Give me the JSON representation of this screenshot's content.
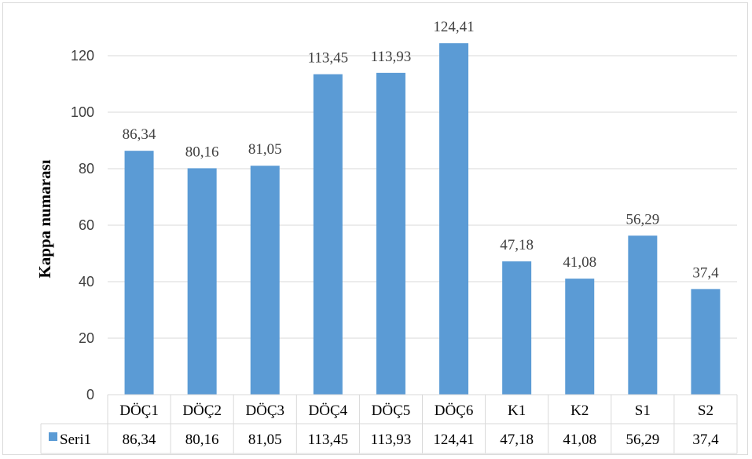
{
  "chart_data": {
    "type": "bar",
    "title": "",
    "xlabel": "",
    "ylabel": "Kappa numarası",
    "ylim": [
      0,
      140
    ],
    "yticks": [
      0,
      20,
      40,
      60,
      80,
      100,
      120
    ],
    "grid": true,
    "legend": "data-table",
    "categories": [
      "DÖÇ1",
      "DÖÇ2",
      "DÖÇ3",
      "DÖÇ4",
      "DÖÇ5",
      "DÖÇ6",
      "K1",
      "K2",
      "S1",
      "S2"
    ],
    "series": [
      {
        "name": "Seri1",
        "color": "#5b9bd5",
        "values": [
          86.34,
          80.16,
          81.05,
          113.45,
          113.93,
          124.41,
          47.18,
          41.08,
          56.29,
          37.4
        ],
        "labels": [
          "86,34",
          "80,16",
          "81,05",
          "113,45",
          "113,93",
          "124,41",
          "47,18",
          "41,08",
          "56,29",
          "37,4"
        ]
      }
    ],
    "colors": {
      "bar": "#5b9bd5",
      "grid": "#d9d9d9",
      "text": "#404040"
    }
  }
}
